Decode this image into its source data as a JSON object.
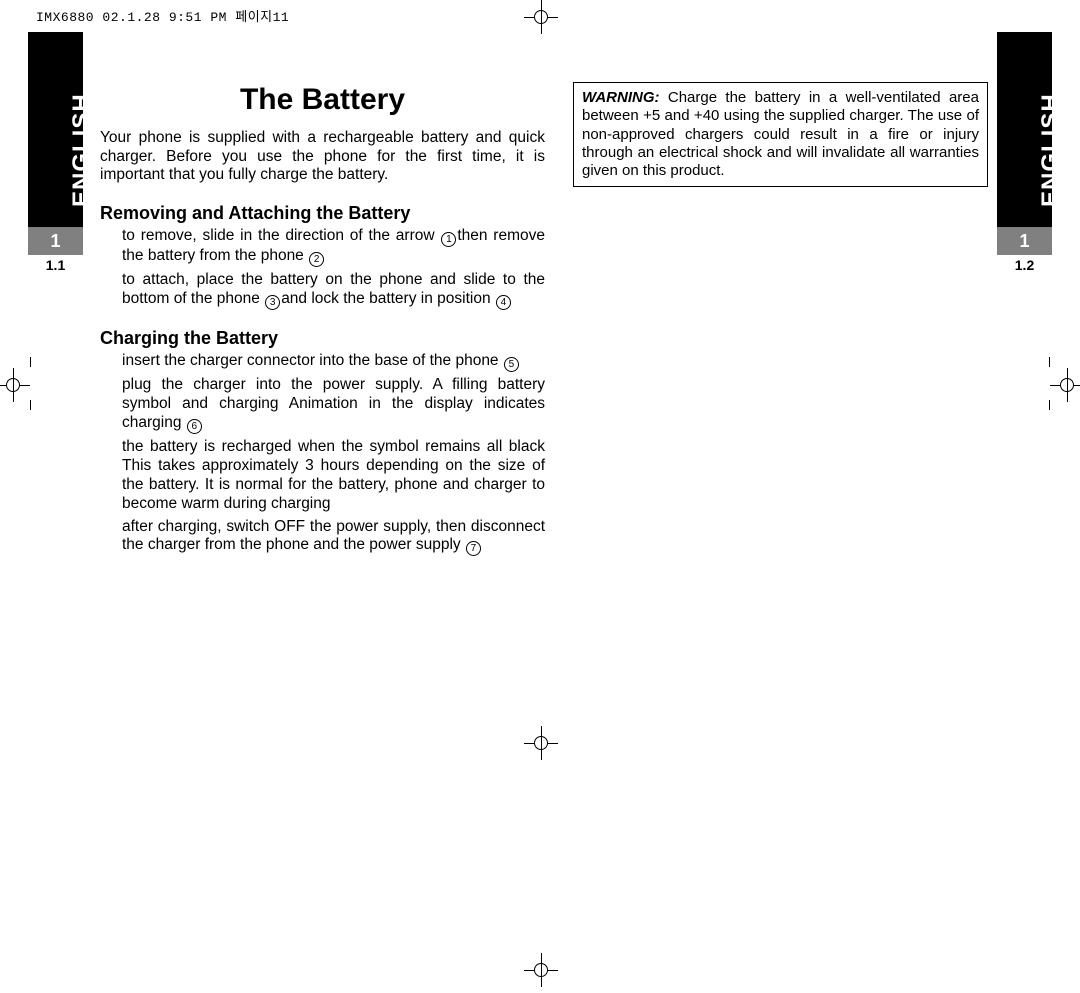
{
  "header": "IMX6880  02.1.28 9:51 PM    페이지11",
  "sidebars": {
    "language": "ENGLISH",
    "chapter": "1",
    "left_sub": "1.1",
    "right_sub": "1.2"
  },
  "title": "The Battery",
  "intro": "Your phone is supplied with a rechargeable battery and quick charger. Before you use the phone for the first time, it is important that you fully charge the battery.",
  "section1": {
    "heading": "Removing and Attaching the Battery",
    "p1a": "to remove, slide in the direction of the arrow ",
    "p1b": "then remove the battery from the phone ",
    "p2a": "to attach, place the battery on the phone and slide to the bottom of the phone ",
    "p2b": "and lock the battery in position "
  },
  "section2": {
    "heading": "Charging the Battery",
    "p1": "insert the charger connector into the base of the phone ",
    "p2": "plug the charger into the power supply. A filling battery symbol and charging Animation in the display indicates charging ",
    "p3": "the battery is recharged when the symbol remains all black This takes approximately 3 hours depending on the size of the battery. It is normal for the battery, phone and charger to become warm during charging",
    "p4": "after charging, switch OFF the power supply, then disconnect the charger from the phone and the power supply "
  },
  "warning": {
    "label": "WARNING:",
    "text": " Charge the battery in a well-ventilated area between +5 and +40 using the supplied charger. The use of non-approved chargers could result in a fire or injury through an electrical shock and will invalidate all warranties given on this product."
  },
  "refs": {
    "r1": "1",
    "r2": "2",
    "r3": "3",
    "r4": "4",
    "r5": "5",
    "r6": "6",
    "r7": "7"
  }
}
